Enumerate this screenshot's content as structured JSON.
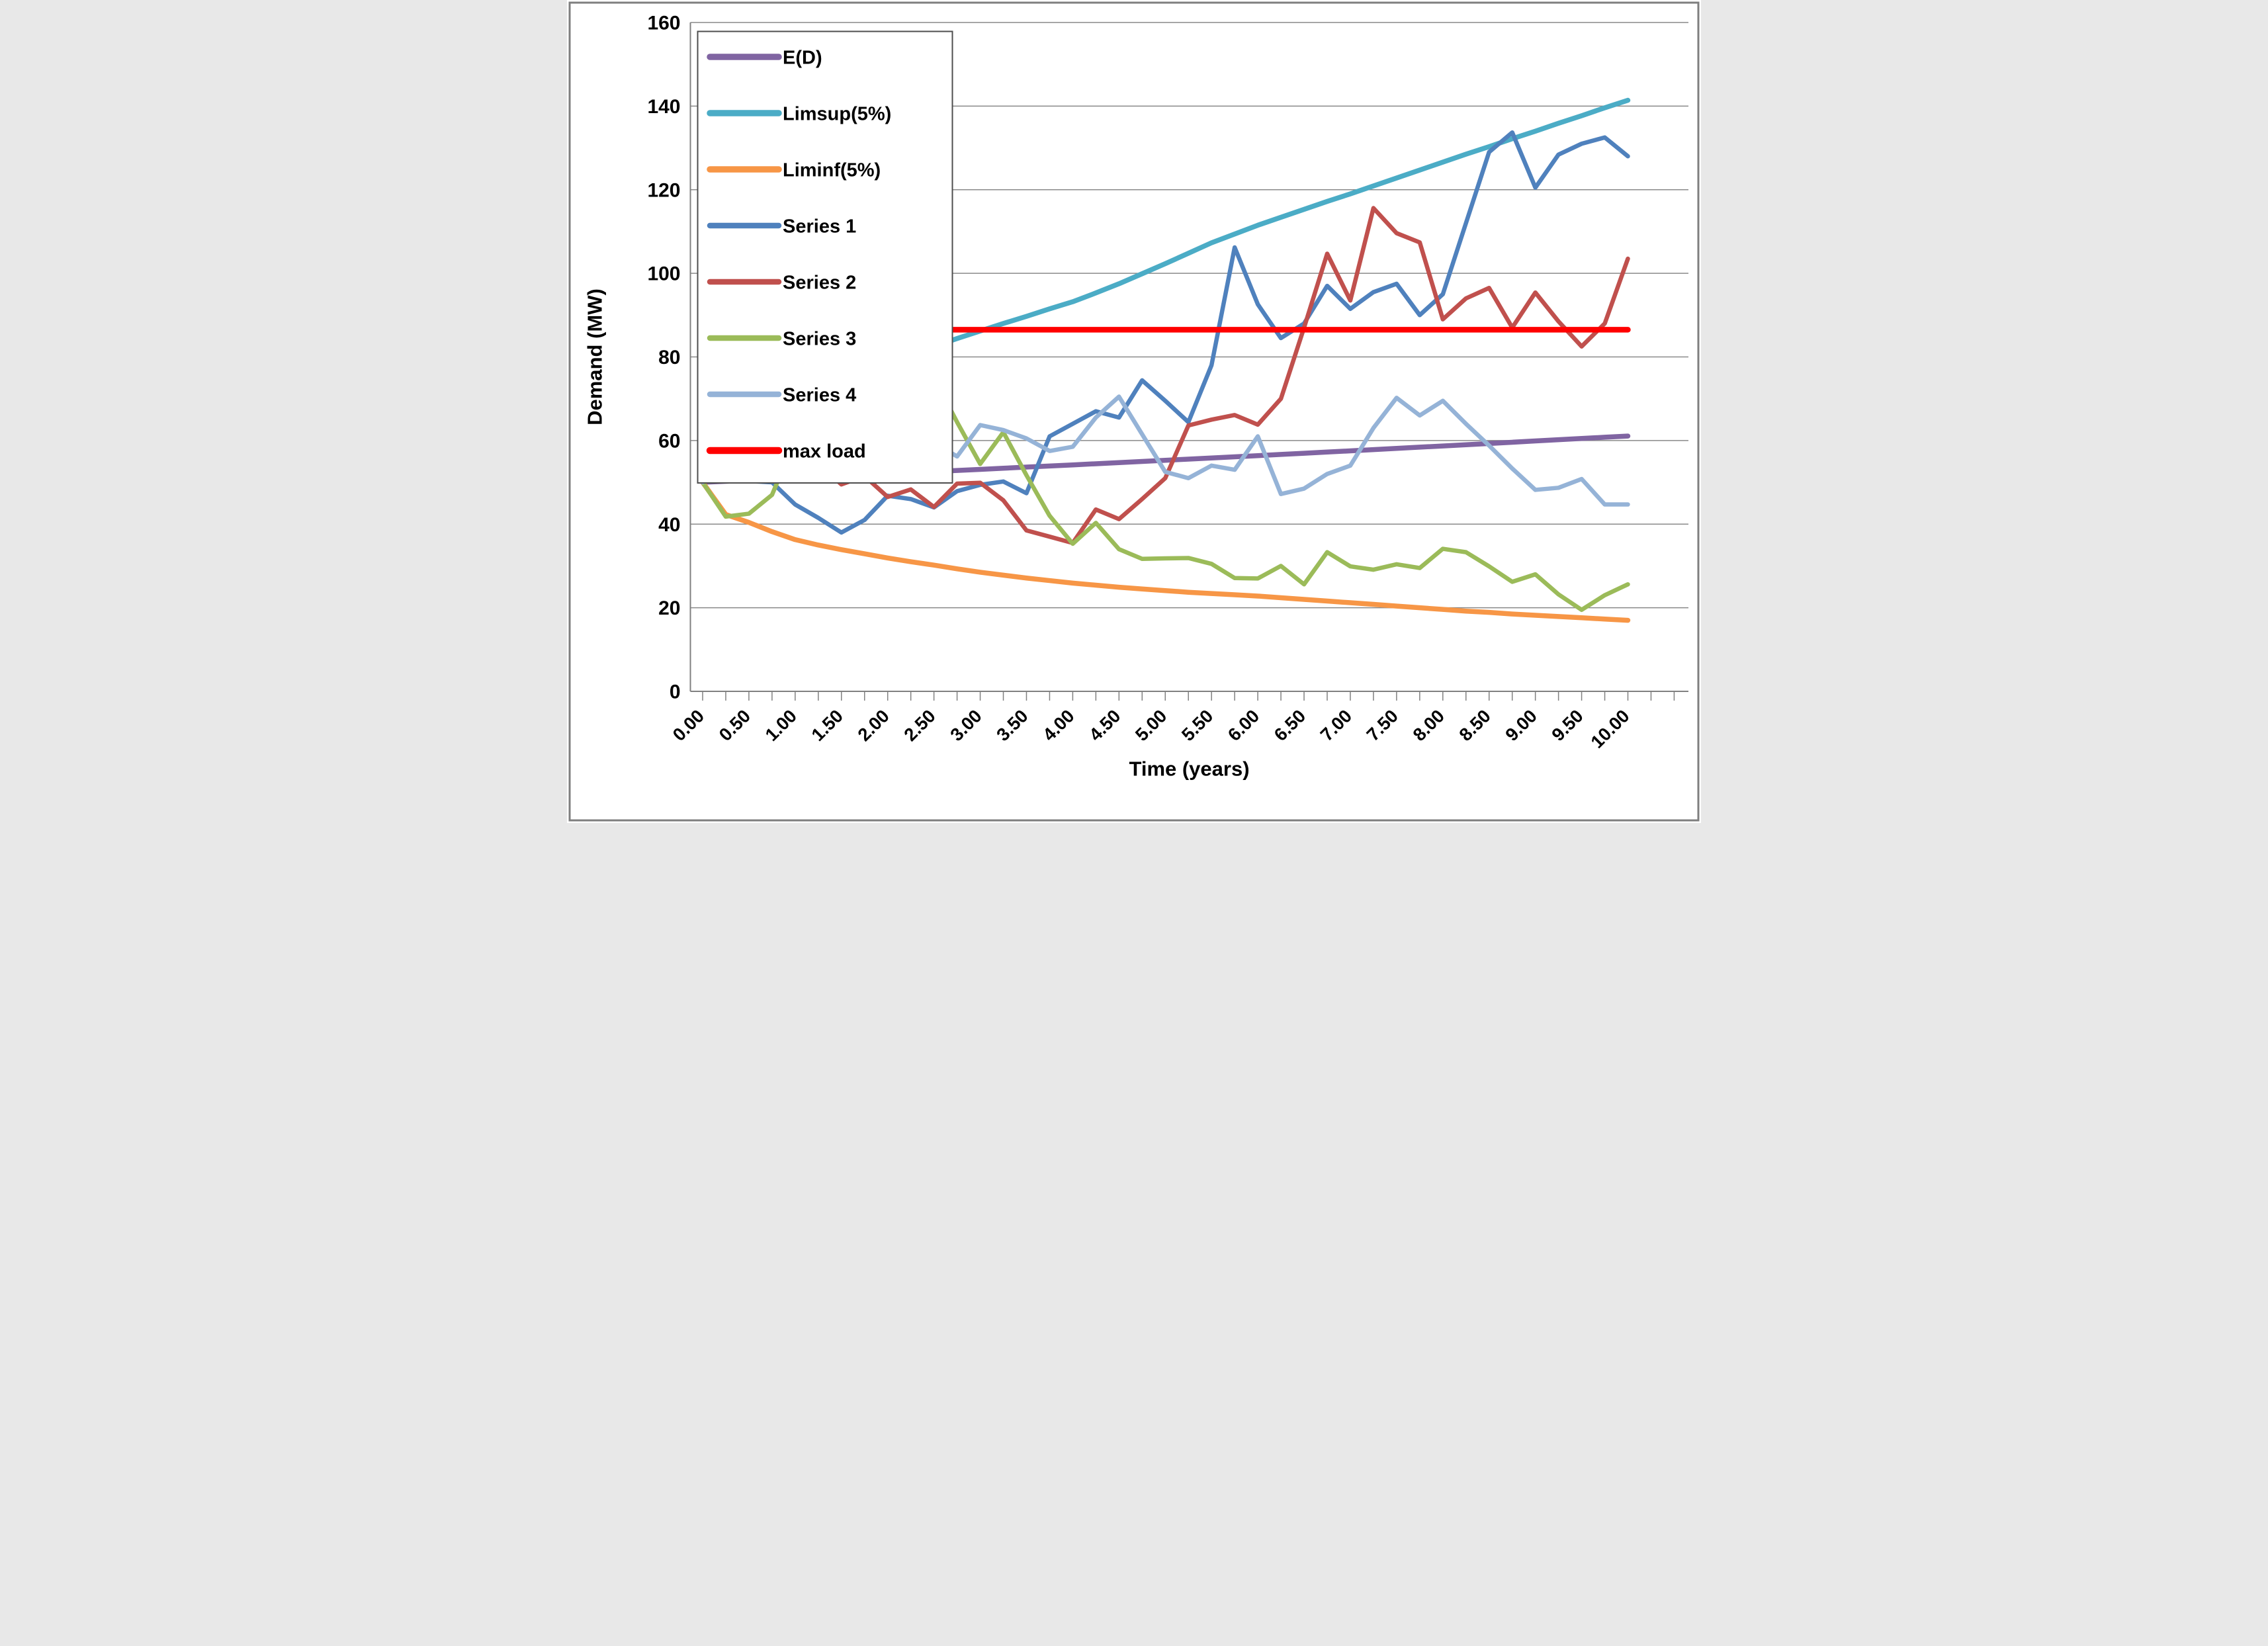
{
  "figure": {
    "background": "#FFFFFF",
    "border_color": "#7F7F7F",
    "gridline_color": "#898989",
    "axis_color": "#808080",
    "legend_border_color": "#4D4D4D"
  },
  "chart_data": {
    "type": "line",
    "title": "",
    "xlabel": "Time (years)",
    "ylabel": "Demand (MW)",
    "x_range": [
      0,
      10
    ],
    "y_range": [
      0,
      160
    ],
    "y_tick_step": 20,
    "x_label_step": 0.5,
    "x_minor_tick_step": 0.25,
    "x_step": 0.25,
    "grid": "horizontal",
    "legend_position": "top-left-inside",
    "y_tick_labels": [
      "0",
      "20",
      "40",
      "60",
      "80",
      "100",
      "120",
      "140",
      "160"
    ],
    "x_tick_labels": [
      "0.00",
      "0.50",
      "1.00",
      "1.50",
      "2.00",
      "2.50",
      "3.00",
      "3.50",
      "4.00",
      "4.50",
      "5.00",
      "5.50",
      "6.00",
      "6.50",
      "7.00",
      "7.50",
      "8.00",
      "8.50",
      "9.00",
      "9.50",
      "10.00"
    ],
    "series": [
      {
        "name": "E(D)",
        "color": "#8064A2",
        "width": 15,
        "values": [
          50,
          50.25,
          50.5,
          50.76,
          51.01,
          51.27,
          51.53,
          51.79,
          52.05,
          52.31,
          52.57,
          52.84,
          53.1,
          53.37,
          53.64,
          53.9,
          54.17,
          54.45,
          54.72,
          54.99,
          55.27,
          55.55,
          55.83,
          56.11,
          56.39,
          56.67,
          56.96,
          57.24,
          57.53,
          57.82,
          58.11,
          58.41,
          58.7,
          59,
          59.29,
          59.59,
          59.89,
          60.19,
          60.49,
          60.79,
          61.07
        ]
      },
      {
        "name": "Limsup(5%)",
        "color": "#4BACC6",
        "width": 15,
        "values": [
          50,
          56,
          61,
          65.3,
          69,
          71.4,
          73.8,
          76,
          78.3,
          80.4,
          82.5,
          84.4,
          86.2,
          88,
          89.7,
          91.5,
          93.2,
          95.3,
          97.5,
          99.9,
          102.3,
          104.8,
          107.3,
          109.4,
          111.5,
          113.4,
          115.3,
          117.2,
          119,
          120.9,
          122.8,
          124.7,
          126.6,
          128.5,
          130.3,
          132.2,
          134,
          135.9,
          137.7,
          139.6,
          141.4
        ]
      },
      {
        "name": "Liminf(5%)",
        "color": "#F79646",
        "width": 15,
        "values": [
          50,
          42.3,
          40.4,
          38.2,
          36.3,
          35,
          33.9,
          32.9,
          31.9,
          31,
          30.2,
          29.3,
          28.5,
          27.8,
          27.1,
          26.5,
          25.9,
          25.4,
          24.9,
          24.5,
          24.1,
          23.7,
          23.4,
          23.1,
          22.8,
          22.4,
          22,
          21.6,
          21.2,
          20.8,
          20.4,
          20,
          19.6,
          19.2,
          18.9,
          18.5,
          18.2,
          17.9,
          17.6,
          17.3,
          17
        ]
      },
      {
        "name": "Series 1",
        "color": "#4F81BD",
        "width": 13,
        "values": [
          50,
          52.2,
          50.3,
          50,
          44.7,
          41.5,
          38,
          41,
          46.8,
          46,
          44,
          47.9,
          49.4,
          50.2,
          47.4,
          61,
          64,
          67,
          65.5,
          74.4,
          69.5,
          64.4,
          78,
          106.2,
          92.6,
          84.5,
          88,
          97,
          91.5,
          95.5,
          97.5,
          90,
          95,
          112,
          129,
          133.7,
          120.5,
          128.4,
          131,
          132.5,
          128
        ]
      },
      {
        "name": "Series 2",
        "color": "#C0504D",
        "width": 13,
        "values": [
          50,
          53,
          63,
          57.5,
          53.5,
          54.5,
          49.5,
          51.5,
          46.5,
          48.3,
          44.1,
          49.7,
          49.9,
          45.7,
          38.5,
          37,
          35.5,
          43.5,
          41.2,
          46,
          51,
          63.6,
          65,
          66.1,
          63.8,
          70,
          87,
          104.7,
          93.5,
          115.6,
          109.6,
          107.4,
          89,
          94,
          96.5,
          87,
          95.4,
          88.5,
          82.5,
          88,
          103.5
        ]
      },
      {
        "name": "Series 3",
        "color": "#9BBB59",
        "width": 13,
        "values": [
          50,
          41.8,
          42.5,
          47,
          60.3,
          60.5,
          75,
          89,
          89.6,
          92.3,
          75,
          64.4,
          54.4,
          62,
          51.7,
          42,
          35.3,
          40.3,
          34,
          31.7,
          31.8,
          31.9,
          30.5,
          27.1,
          27,
          30,
          25.6,
          33.3,
          29.9,
          29.1,
          30.4,
          29.5,
          34.1,
          33.3,
          29.9,
          26.2,
          28,
          23.2,
          19.5,
          23,
          25.6
        ]
      },
      {
        "name": "Series 4",
        "color": "#95B3D7",
        "width": 13,
        "values": [
          50,
          66,
          72,
          74.3,
          73.5,
          71.8,
          69.6,
          70.9,
          66.5,
          61.5,
          59.5,
          56.2,
          63.7,
          62.5,
          60.5,
          57.5,
          58.5,
          65.5,
          70.5,
          61.5,
          52.5,
          51,
          54,
          53,
          61,
          47.2,
          48.5,
          52,
          54,
          63,
          70.2,
          66,
          69.5,
          64,
          58.8,
          53.3,
          48.2,
          48.7,
          50.8,
          44.7,
          44.7
        ]
      },
      {
        "name": "max load",
        "color": "#FF0000",
        "width": 17,
        "const": 86.5
      }
    ]
  }
}
